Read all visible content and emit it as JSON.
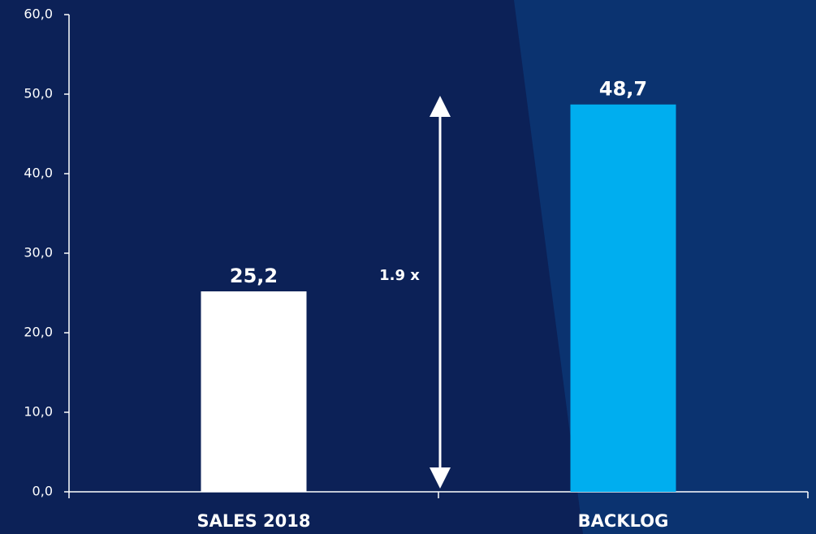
{
  "chart_data": {
    "type": "bar",
    "categories": [
      "SALES 2018",
      "BACKLOG"
    ],
    "values": [
      25.2,
      48.7
    ],
    "value_labels": [
      "25,2",
      "48,7"
    ],
    "colors": [
      "#ffffff",
      "#00aeef"
    ],
    "ylim": [
      0,
      60
    ],
    "yticks": [
      {
        "value": 0,
        "label": "0,0"
      },
      {
        "value": 10,
        "label": "10,0"
      },
      {
        "value": 20,
        "label": "20,0"
      },
      {
        "value": 30,
        "label": "30,0"
      },
      {
        "value": 40,
        "label": "40,0"
      },
      {
        "value": 50,
        "label": "50,0"
      },
      {
        "value": 60,
        "label": "60,0"
      }
    ],
    "annotation": "1.9 x",
    "grid": false
  }
}
